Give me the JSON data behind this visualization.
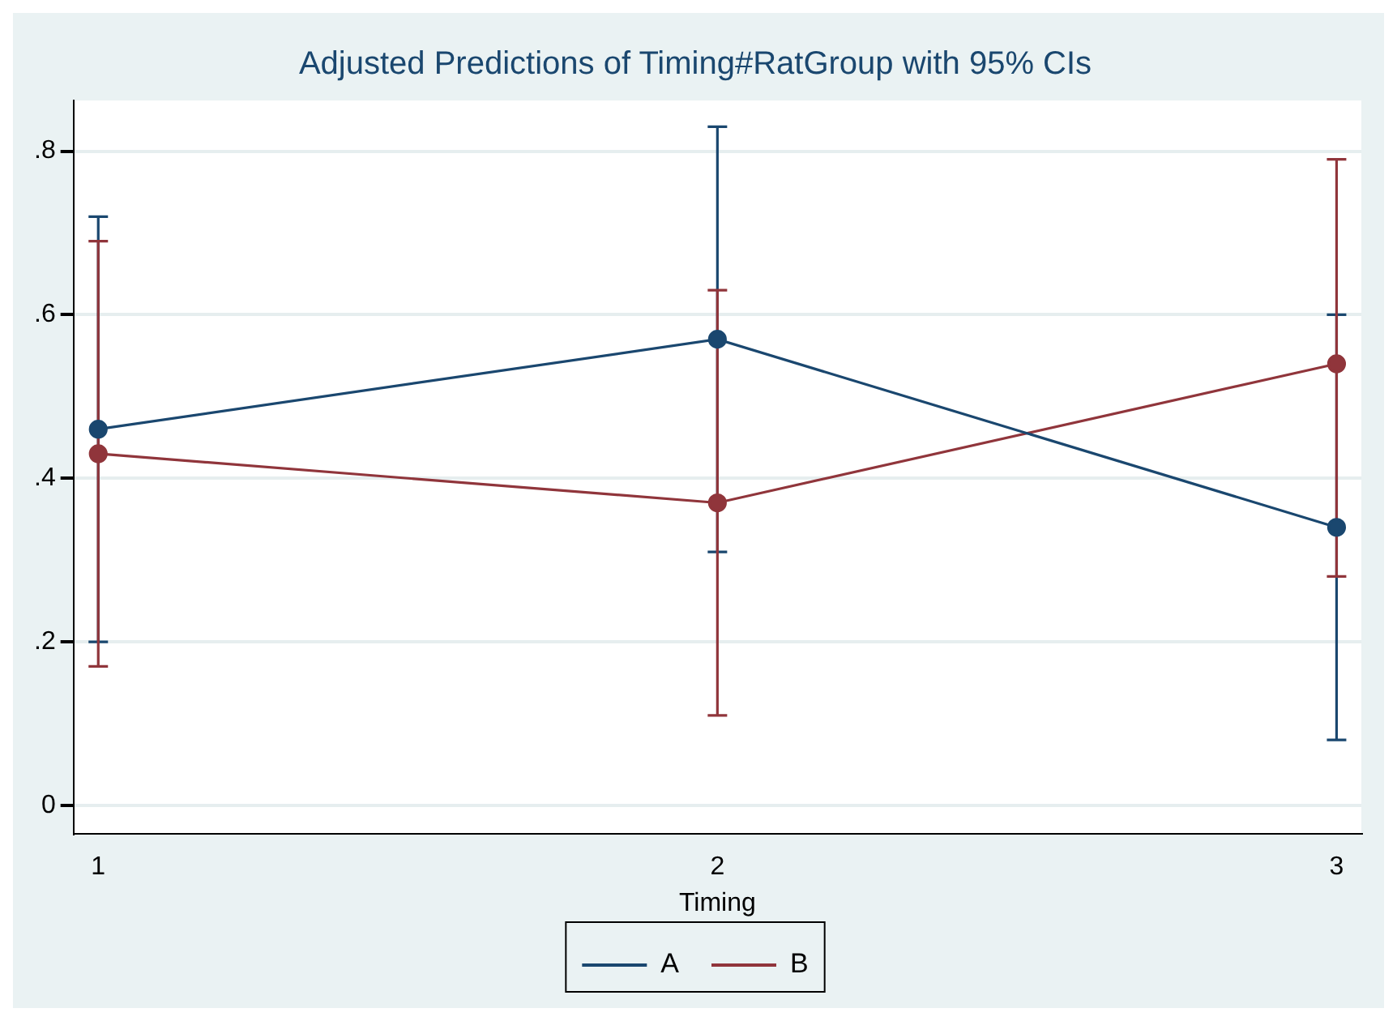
{
  "chart_data": {
    "type": "line",
    "title": "Adjusted Predictions of Timing#RatGroup with 95% CIs",
    "xlabel": "Timing",
    "x": [
      1,
      2,
      3
    ],
    "xlim": [
      0.96,
      3.04
    ],
    "xticks": [
      1,
      2,
      3
    ],
    "ylim": [
      -0.035,
      0.862
    ],
    "yticks": [
      0,
      {
        "value": 0.2,
        "label": ".2"
      },
      {
        "value": 0.4,
        "label": ".4"
      },
      {
        "value": 0.6,
        "label": ".6"
      },
      {
        "value": 0.8,
        "label": ".8"
      }
    ],
    "grid": "y",
    "legend": "bottom",
    "marker": "circle",
    "line_style": "solid",
    "series": [
      {
        "name": "A",
        "color": "#1a476f",
        "values": [
          0.46,
          0.57,
          0.34
        ],
        "errors": [
          [
            0.2,
            0.72
          ],
          [
            0.31,
            0.83
          ],
          [
            0.08,
            0.6
          ]
        ]
      },
      {
        "name": "B",
        "color": "#90353b",
        "values": [
          0.43,
          0.37,
          0.54
        ],
        "errors": [
          [
            0.17,
            0.69
          ],
          [
            0.11,
            0.63
          ],
          [
            0.28,
            0.79
          ]
        ]
      }
    ]
  }
}
